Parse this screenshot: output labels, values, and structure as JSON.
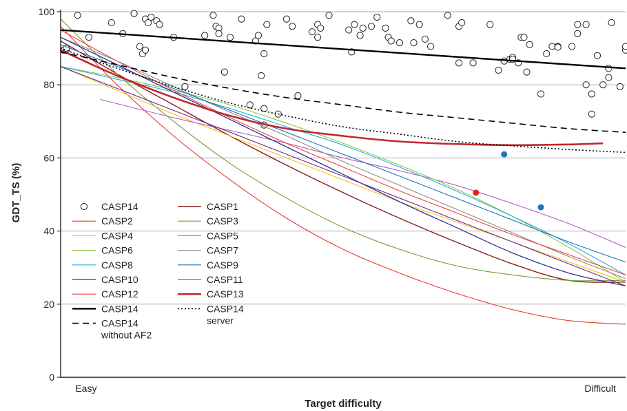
{
  "chart_data": {
    "type": "line",
    "title": "",
    "xlabel": "Target difficulty",
    "ylabel": "GDT_TS (%)",
    "xlim": [
      0,
      1
    ],
    "ylim": [
      0,
      100
    ],
    "y_ticks": [
      0,
      20,
      40,
      60,
      80,
      100
    ],
    "x_tick_labels": [
      {
        "label": "Easy",
        "x": 0.045
      },
      {
        "label": "Difficult",
        "x": 0.955
      }
    ],
    "grid": "horizontal",
    "legend_position": "lower-left",
    "series": [
      {
        "name": "CASP1",
        "color": "#8b1a1a",
        "width": 1.4,
        "dash": "solid",
        "x": [
          0.0,
          0.1,
          0.2,
          0.3,
          0.4,
          0.5,
          0.6,
          0.7,
          0.8,
          0.9,
          1.0
        ],
        "y": [
          92,
          83,
          74.5,
          66,
          58,
          50.5,
          43.5,
          37,
          31,
          26.5,
          26
        ]
      },
      {
        "name": "CASP2",
        "color": "#e03c31",
        "width": 1.1,
        "dash": "solid",
        "x": [
          0.0,
          0.1,
          0.2,
          0.3,
          0.4,
          0.5,
          0.6,
          0.7,
          0.8,
          0.9,
          1.0
        ],
        "y": [
          96,
          80,
          66,
          54,
          43.5,
          35,
          28.5,
          23,
          18.5,
          15.5,
          14.5
        ]
      },
      {
        "name": "CASP3",
        "color": "#7a9a3a",
        "width": 1.1,
        "dash": "solid",
        "x": [
          0.0,
          0.1,
          0.2,
          0.3,
          0.4,
          0.5,
          0.6,
          0.7,
          0.8,
          0.9,
          1.0
        ],
        "y": [
          98,
          83,
          70,
          58.5,
          49,
          41,
          35,
          30.5,
          28,
          26.5,
          26.5
        ]
      },
      {
        "name": "CASP4",
        "color": "#f4c21b",
        "width": 1.1,
        "dash": "solid",
        "x": [
          0.0,
          0.1,
          0.2,
          0.3,
          0.4,
          0.5,
          0.6,
          0.7,
          0.8,
          0.9,
          1.0
        ],
        "y": [
          85,
          78.5,
          72,
          66,
          60,
          54,
          48,
          42.5,
          37,
          31.5,
          26
        ]
      },
      {
        "name": "CASP5",
        "color": "#b25fbe",
        "width": 1.1,
        "dash": "solid",
        "x": [
          0.07,
          0.2,
          0.3,
          0.4,
          0.5,
          0.6,
          0.7,
          0.8,
          0.9,
          1.0
        ],
        "y": [
          76,
          71,
          67.5,
          64,
          60,
          56.5,
          52.5,
          47.5,
          42,
          35.5
        ]
      },
      {
        "name": "CASP6",
        "color": "#8dc63f",
        "width": 1.1,
        "dash": "solid",
        "x": [
          0.0,
          0.1,
          0.2,
          0.3,
          0.4,
          0.5,
          0.6,
          0.7,
          0.8,
          0.9,
          1.0
        ],
        "y": [
          85,
          82,
          78.5,
          74.5,
          69.5,
          64,
          58,
          51.5,
          44,
          35.5,
          26
        ]
      },
      {
        "name": "CASP7",
        "color": "#8c8c8c",
        "width": 1.1,
        "dash": "solid",
        "x": [
          0.0,
          0.1,
          0.2,
          0.3,
          0.4,
          0.5,
          0.6,
          0.7,
          0.8,
          0.9,
          1.0
        ],
        "y": [
          93,
          86.5,
          79.5,
          72.5,
          66,
          59,
          52.5,
          46,
          39.5,
          33,
          27
        ]
      },
      {
        "name": "CASP8",
        "color": "#29abe2",
        "width": 1.1,
        "dash": "solid",
        "x": [
          0.0,
          0.1,
          0.2,
          0.3,
          0.4,
          0.5,
          0.6,
          0.7,
          0.8,
          0.9,
          1.0
        ],
        "y": [
          85,
          81.5,
          78,
          73.5,
          68.5,
          63.5,
          57.5,
          51,
          44,
          36.5,
          28
        ]
      },
      {
        "name": "CASP9",
        "color": "#1b75bc",
        "width": 1.1,
        "dash": "solid",
        "x": [
          0.0,
          0.1,
          0.2,
          0.3,
          0.4,
          0.5,
          0.6,
          0.7,
          0.8,
          0.9,
          1.0
        ],
        "y": [
          91,
          85,
          79,
          73,
          67,
          61,
          55,
          49,
          43,
          37,
          31.5
        ]
      },
      {
        "name": "CASP10",
        "color": "#2e3192",
        "width": 1.3,
        "dash": "solid",
        "x": [
          0.0,
          0.1,
          0.2,
          0.3,
          0.4,
          0.5,
          0.6,
          0.7,
          0.8,
          0.9,
          1.0
        ],
        "y": [
          93,
          85.5,
          78,
          70.5,
          63,
          55.5,
          48,
          41,
          34,
          28.5,
          25
        ]
      },
      {
        "name": "CASP11",
        "color": "#662d91",
        "width": 1.1,
        "dash": "solid",
        "x": [
          0.0,
          0.1,
          0.2,
          0.3,
          0.4,
          0.5,
          0.6,
          0.7,
          0.8,
          0.9,
          1.0
        ],
        "y": [
          85,
          79,
          73,
          67,
          61,
          55,
          49,
          43,
          37,
          31,
          25
        ]
      },
      {
        "name": "CASP12",
        "color": "#ef4136",
        "width": 1.1,
        "dash": "solid",
        "x": [
          0.0,
          0.1,
          0.2,
          0.3,
          0.4,
          0.5,
          0.6,
          0.7,
          0.8,
          0.9,
          1.0
        ],
        "y": [
          95,
          86.5,
          78.5,
          71,
          64,
          57.5,
          51,
          45,
          39,
          33.5,
          28
        ]
      },
      {
        "name": "CASP13",
        "color": "#c1272d",
        "width": 2.6,
        "dash": "solid",
        "x": [
          0.0,
          0.1,
          0.2,
          0.3,
          0.4,
          0.5,
          0.6,
          0.7,
          0.8,
          0.9,
          0.96
        ],
        "y": [
          89.5,
          82.5,
          76.5,
          71.5,
          68,
          66,
          64.5,
          63.8,
          63.5,
          63.7,
          64
        ]
      },
      {
        "name": "CASP14",
        "color": "#000000",
        "width": 2.4,
        "dash": "solid",
        "x": [
          0.0,
          1.0
        ],
        "y": [
          95,
          84.5
        ]
      },
      {
        "name": "CASP14 without AF2",
        "color": "#000000",
        "width": 1.6,
        "dash": "9,6",
        "x": [
          0.0,
          0.1,
          0.2,
          0.3,
          0.4,
          0.5,
          0.6,
          0.7,
          0.8,
          0.9,
          1.0
        ],
        "y": [
          89,
          85.5,
          82,
          79,
          76.5,
          74.5,
          72.5,
          71,
          69.5,
          68,
          67
        ]
      },
      {
        "name": "CASP14 server",
        "color": "#000000",
        "width": 1.6,
        "dash": "2,3",
        "x": [
          0.0,
          0.1,
          0.2,
          0.3,
          0.4,
          0.5,
          0.6,
          0.7,
          0.8,
          0.9,
          1.0
        ],
        "y": [
          90,
          84.5,
          79.5,
          75,
          71.5,
          68.5,
          66.5,
          64.5,
          63.3,
          62.3,
          61.5
        ]
      }
    ],
    "scatter": {
      "name": "CASP14",
      "marker": "open-circle",
      "points": [
        [
          0.005,
          89.5
        ],
        [
          0.01,
          89.5
        ],
        [
          0.01,
          90
        ],
        [
          0.03,
          99
        ],
        [
          0.05,
          93
        ],
        [
          0.09,
          97
        ],
        [
          0.11,
          94
        ],
        [
          0.13,
          99.5
        ],
        [
          0.15,
          98
        ],
        [
          0.155,
          97
        ],
        [
          0.16,
          98.5
        ],
        [
          0.17,
          97.5
        ],
        [
          0.175,
          96.5
        ],
        [
          0.14,
          90.5
        ],
        [
          0.145,
          88.5
        ],
        [
          0.15,
          89.5
        ],
        [
          0.2,
          93
        ],
        [
          0.22,
          79.5
        ],
        [
          0.255,
          93.5
        ],
        [
          0.27,
          99
        ],
        [
          0.275,
          96
        ],
        [
          0.28,
          95.5
        ],
        [
          0.28,
          94
        ],
        [
          0.29,
          83.5
        ],
        [
          0.3,
          93
        ],
        [
          0.32,
          98
        ],
        [
          0.335,
          74.5
        ],
        [
          0.345,
          92
        ],
        [
          0.35,
          93.5
        ],
        [
          0.355,
          82.5
        ],
        [
          0.36,
          88.5
        ],
        [
          0.36,
          73.5
        ],
        [
          0.36,
          69
        ],
        [
          0.365,
          96.5
        ],
        [
          0.385,
          72
        ],
        [
          0.4,
          98
        ],
        [
          0.41,
          96
        ],
        [
          0.42,
          77
        ],
        [
          0.445,
          94.5
        ],
        [
          0.455,
          93
        ],
        [
          0.455,
          96.5
        ],
        [
          0.46,
          95.5
        ],
        [
          0.475,
          99
        ],
        [
          0.51,
          95
        ],
        [
          0.515,
          89
        ],
        [
          0.52,
          96.5
        ],
        [
          0.53,
          93.5
        ],
        [
          0.535,
          95.5
        ],
        [
          0.55,
          96
        ],
        [
          0.56,
          98.5
        ],
        [
          0.575,
          95.5
        ],
        [
          0.58,
          93
        ],
        [
          0.585,
          92
        ],
        [
          0.6,
          91.5
        ],
        [
          0.62,
          97.5
        ],
        [
          0.625,
          91.5
        ],
        [
          0.635,
          96.5
        ],
        [
          0.645,
          92.5
        ],
        [
          0.655,
          90.5
        ],
        [
          0.685,
          99
        ],
        [
          0.705,
          96
        ],
        [
          0.705,
          86
        ],
        [
          0.71,
          97
        ],
        [
          0.73,
          86
        ],
        [
          0.76,
          96.5
        ],
        [
          0.775,
          84
        ],
        [
          0.785,
          86.5
        ],
        [
          0.795,
          87
        ],
        [
          0.8,
          87.5
        ],
        [
          0.8,
          87
        ],
        [
          0.81,
          86
        ],
        [
          0.815,
          93
        ],
        [
          0.82,
          93
        ],
        [
          0.825,
          83.5
        ],
        [
          0.83,
          91
        ],
        [
          0.85,
          77.5
        ],
        [
          0.86,
          88.5
        ],
        [
          0.87,
          90.5
        ],
        [
          0.88,
          90.5
        ],
        [
          0.88,
          90.3
        ],
        [
          0.905,
          90.5
        ],
        [
          0.915,
          94
        ],
        [
          0.915,
          96.5
        ],
        [
          0.93,
          96.5
        ],
        [
          0.93,
          80
        ],
        [
          0.94,
          77.5
        ],
        [
          0.94,
          72
        ],
        [
          0.95,
          88
        ],
        [
          0.96,
          80
        ],
        [
          0.97,
          84.5
        ],
        [
          0.97,
          82
        ],
        [
          0.975,
          97
        ],
        [
          0.99,
          79.5
        ],
        [
          1.0,
          89.5
        ],
        [
          1.0,
          90.5
        ]
      ]
    },
    "highlight_points": [
      {
        "x": 0.735,
        "y": 50.5,
        "color": "#ed1c24"
      },
      {
        "x": 0.785,
        "y": 61,
        "color": "#1b75bc"
      },
      {
        "x": 0.85,
        "y": 46.5,
        "color": "#1b75bc"
      }
    ],
    "legend": {
      "columns": [
        [
          "CASP14",
          "CASP2",
          "CASP4",
          "CASP6",
          "CASP8",
          "CASP10",
          "CASP12",
          "CASP14",
          "CASP14 without AF2"
        ],
        [
          "CASP1",
          "CASP3",
          "CASP5",
          "CASP7",
          "CASP9",
          "CASP11",
          "CASP13",
          "CASP14 server"
        ]
      ]
    }
  }
}
